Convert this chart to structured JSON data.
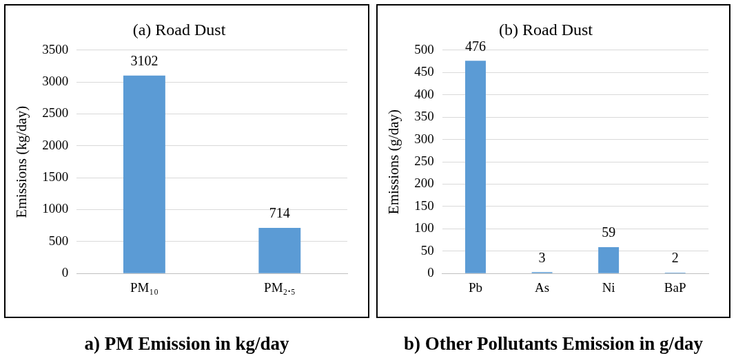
{
  "chart_data": [
    {
      "type": "bar",
      "title": "(a) Road Dust",
      "ylabel": "Emissions (kg/day)",
      "categories": [
        "PM₁₀",
        "PM₂.₅"
      ],
      "values": [
        3102,
        714
      ],
      "color": "#5b9bd5",
      "ylim": [
        0,
        3500
      ],
      "yticks": [
        0,
        500,
        1000,
        1500,
        2000,
        2500,
        3000,
        3500
      ],
      "grid": "y",
      "data_labels": true,
      "annotations": [
        "a) PM Emission in kg/day"
      ]
    },
    {
      "type": "bar",
      "title": "(b) Road Dust",
      "ylabel": "Emissions (g/day)",
      "categories": [
        "Pb",
        "As",
        "Ni",
        "BaP"
      ],
      "values": [
        476,
        3,
        59,
        2
      ],
      "color": "#5b9bd5",
      "ylim": [
        0,
        500
      ],
      "yticks": [
        0,
        50,
        100,
        150,
        200,
        250,
        300,
        350,
        400,
        450,
        500
      ],
      "grid": "y",
      "data_labels": true,
      "annotations": [
        "b) Other Pollutants Emission in g/day"
      ]
    }
  ]
}
